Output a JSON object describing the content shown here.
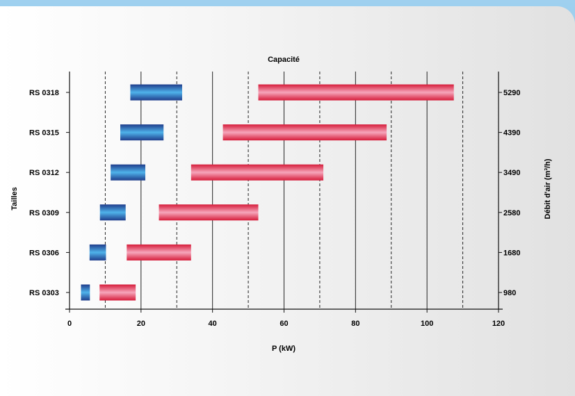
{
  "chart_data": {
    "type": "bar",
    "title": "Capacité",
    "xlabel": "P (kW)",
    "ylabel": "Tailles",
    "y2label": "Débit d'air (m³/h)",
    "xlim": [
      0,
      120
    ],
    "xticks": [
      0,
      20,
      40,
      60,
      80,
      100,
      120
    ],
    "gridlines": {
      "solid": [
        20,
        40,
        60,
        80,
        100
      ],
      "dashed": [
        10,
        30,
        50,
        70,
        90,
        110
      ]
    },
    "categories": [
      "RS 0318",
      "RS 0315",
      "RS 0312",
      "RS 0309",
      "RS 0306",
      "RS 0303"
    ],
    "airflow": [
      "5290",
      "4390",
      "3490",
      "2580",
      "1680",
      "980"
    ],
    "series": [
      {
        "color": "#2b4fa6",
        "ranges": [
          [
            17,
            31.5
          ],
          [
            14.2,
            26.3
          ],
          [
            11.5,
            21.2
          ],
          [
            8.5,
            15.7
          ],
          [
            5.6,
            10.2
          ],
          [
            3.2,
            5.7
          ]
        ]
      },
      {
        "color": "#e8304a",
        "ranges": [
          [
            52.8,
            107.5
          ],
          [
            42.9,
            88.7
          ],
          [
            34,
            71
          ],
          [
            25,
            52.8
          ],
          [
            16,
            34
          ],
          [
            8.4,
            18.5
          ]
        ]
      }
    ]
  }
}
